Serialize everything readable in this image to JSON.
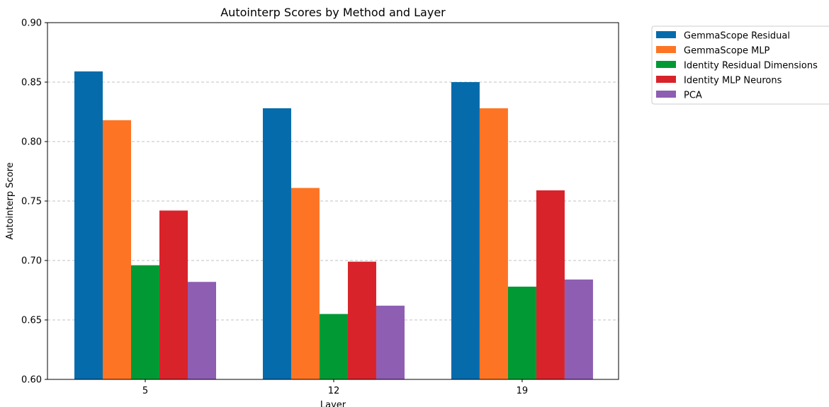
{
  "chart_data": {
    "type": "bar",
    "title": "Autointerp Scores by Method and Layer",
    "xlabel": "Layer",
    "ylabel": "Autointerp Score",
    "categories": [
      "5",
      "12",
      "19"
    ],
    "ylim": [
      0.6,
      0.9
    ],
    "yticks": [
      "0.60",
      "0.65",
      "0.70",
      "0.75",
      "0.80",
      "0.85",
      "0.90"
    ],
    "grid": "y-dashed",
    "legend_position": "outside-top-right",
    "series": [
      {
        "name": "GemmaScope Residual",
        "color": "#066bab",
        "values": [
          0.859,
          0.828,
          0.85
        ]
      },
      {
        "name": "GemmaScope MLP",
        "color": "#fd7524",
        "values": [
          0.818,
          0.761,
          0.828
        ]
      },
      {
        "name": "Identity Residual Dimensions",
        "color": "#019934",
        "values": [
          0.696,
          0.655,
          0.678
        ]
      },
      {
        "name": "Identity MLP Neurons",
        "color": "#d9232a",
        "values": [
          0.742,
          0.699,
          0.759
        ]
      },
      {
        "name": "PCA",
        "color": "#8e5eb2",
        "values": [
          0.682,
          0.662,
          0.684
        ]
      }
    ]
  }
}
